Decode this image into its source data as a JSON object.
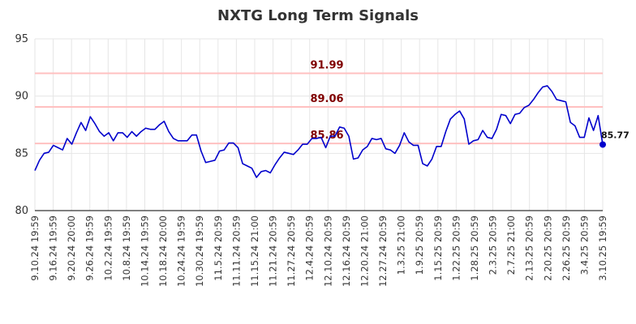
{
  "chart_data": {
    "type": "line",
    "title": "NXTG Long Term Signals",
    "xlabel": "",
    "ylabel": "",
    "ylim": [
      80,
      95
    ],
    "yticks": [
      80,
      85,
      90,
      95
    ],
    "grid": true,
    "x_tick_labels": [
      "9.10.24 19:59",
      "9.16.24 19:59",
      "9.20.24 20:00",
      "9.26.24 19:59",
      "10.2.24 19:59",
      "10.8.24 19:59",
      "10.14.24 19:59",
      "10.18.24 20:00",
      "10.24.24 19:59",
      "10.30.24 19:59",
      "11.5.24 20:59",
      "11.11.24 20:59",
      "11.15.24 21:00",
      "11.21.24 20:59",
      "11.27.24 20:59",
      "12.4.24 20:59",
      "12.10.24 20:59",
      "12.16.24 20:59",
      "12.20.24 21:00",
      "12.27.24 20:59",
      "1.3.25 21:00",
      "1.9.25 20:59",
      "1.15.25 20:59",
      "1.22.25 20:59",
      "1.28.25 20:59",
      "2.3.25 20:59",
      "2.7.25 21:00",
      "2.13.25 20:59",
      "2.20.25 20:59",
      "2.26.25 20:59",
      "3.4.25 20:59",
      "3.10.25 19:59"
    ],
    "series": [
      {
        "color": "#0000cc",
        "values": [
          83.5,
          84.4,
          85.0,
          85.1,
          85.7,
          85.5,
          85.3,
          86.3,
          85.8,
          86.8,
          87.7,
          87.0,
          88.2,
          87.6,
          86.9,
          86.5,
          86.8,
          86.1,
          86.8,
          86.8,
          86.4,
          86.9,
          86.5,
          86.9,
          87.2,
          87.1,
          87.1,
          87.5,
          87.8,
          86.9,
          86.3,
          86.1,
          86.1,
          86.1,
          86.6,
          86.6,
          85.2,
          84.2,
          84.3,
          84.4,
          85.2,
          85.3,
          85.9,
          85.9,
          85.5,
          84.1,
          83.9,
          83.7,
          82.9,
          83.4,
          83.5,
          83.3,
          84.0,
          84.6,
          85.1,
          85.0,
          84.9,
          85.3,
          85.8,
          85.8,
          86.3,
          86.3,
          86.4,
          85.5,
          86.5,
          86.5,
          87.3,
          87.2,
          86.5,
          84.5,
          84.6,
          85.3,
          85.6,
          86.3,
          86.2,
          86.3,
          85.4,
          85.3,
          85.0,
          85.7,
          86.8,
          86.0,
          85.7,
          85.7,
          84.1,
          83.9,
          84.5,
          85.6,
          85.6,
          86.9,
          88.0,
          88.4,
          88.7,
          88.0,
          85.8,
          86.1,
          86.2,
          87.0,
          86.4,
          86.3,
          87.1,
          88.4,
          88.3,
          87.6,
          88.4,
          88.5,
          89.0,
          89.2,
          89.7,
          90.3,
          90.8,
          90.9,
          90.4,
          89.7,
          89.6,
          89.5,
          87.7,
          87.4,
          86.4,
          86.4,
          88.1,
          87.0,
          88.3,
          85.77
        ]
      }
    ],
    "levels": [
      {
        "value": 91.99,
        "label": "91.99"
      },
      {
        "value": 89.06,
        "label": "89.06"
      },
      {
        "value": 85.86,
        "label": "85.86"
      }
    ],
    "last_value": 85.77,
    "last_value_label": "85.77",
    "colors": {
      "line": "#0000cc",
      "level_line": "#ffc0c0",
      "level_label": "#800000",
      "grid": "#e6e6e6",
      "axis": "#000000",
      "marker": "#0000cc"
    }
  }
}
